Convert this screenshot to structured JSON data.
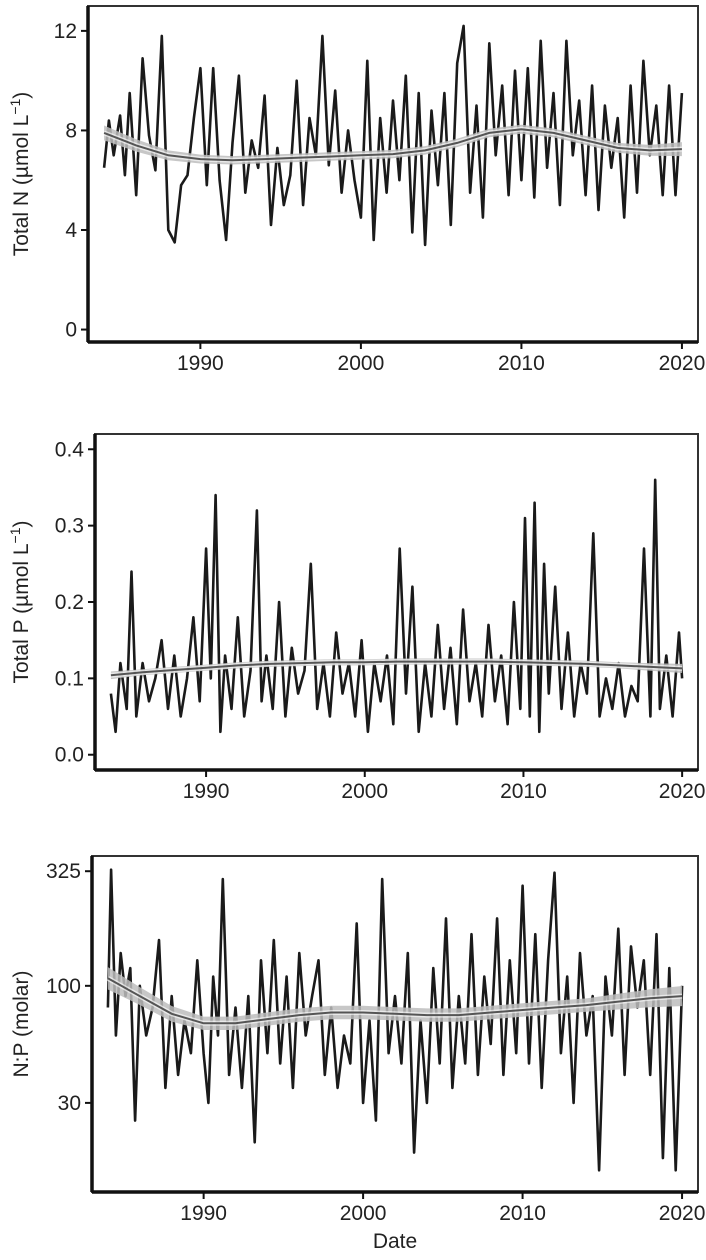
{
  "chart_data": [
    {
      "type": "line",
      "ylabel": "Total N  (µmol L",
      "ylabel_sup": "−1",
      "ylabel_close": ")",
      "xlabel": "",
      "xlim": [
        1983,
        2021
      ],
      "ylim": [
        -0.5,
        13
      ],
      "y_ticks": [
        0,
        4,
        8,
        12
      ],
      "y_tick_labels": [
        "0",
        "4",
        "8",
        "12"
      ],
      "x_ticks": [
        1990,
        2000,
        2010,
        2020
      ],
      "x_tick_labels": [
        "1990",
        "2000",
        "2010",
        "2020"
      ],
      "grid": false,
      "series": [
        {
          "kind": "raw",
          "color": "#1a1a1a",
          "x": [
            1984.0,
            1984.3,
            1984.6,
            1985.0,
            1985.3,
            1985.6,
            1986.0,
            1986.4,
            1986.8,
            1987.2,
            1987.6,
            1988.0,
            1988.4,
            1988.8,
            1989.2,
            1989.6,
            1990.0,
            1990.4,
            1990.8,
            1991.2,
            1991.6,
            1992.0,
            1992.4,
            1992.8,
            1993.2,
            1993.6,
            1994.0,
            1994.4,
            1994.8,
            1995.2,
            1995.6,
            1996.0,
            1996.4,
            1996.8,
            1997.2,
            1997.6,
            1998.0,
            1998.4,
            1998.8,
            1999.2,
            1999.6,
            2000.0,
            2000.4,
            2000.8,
            2001.2,
            2001.6,
            2002.0,
            2002.4,
            2002.8,
            2003.2,
            2003.6,
            2004.0,
            2004.4,
            2004.8,
            2005.2,
            2005.6,
            2006.0,
            2006.4,
            2006.8,
            2007.2,
            2007.6,
            2008.0,
            2008.4,
            2008.8,
            2009.2,
            2009.6,
            2010.0,
            2010.4,
            2010.8,
            2011.2,
            2011.6,
            2012.0,
            2012.4,
            2012.8,
            2013.2,
            2013.6,
            2014.0,
            2014.4,
            2014.8,
            2015.2,
            2015.6,
            2016.0,
            2016.4,
            2016.8,
            2017.2,
            2017.6,
            2018.0,
            2018.4,
            2018.8,
            2019.2,
            2019.6,
            2020.0
          ],
          "y": [
            6.5,
            8.4,
            7.0,
            8.6,
            6.2,
            9.5,
            5.4,
            10.9,
            7.8,
            6.4,
            11.8,
            4.0,
            3.5,
            5.8,
            6.2,
            8.5,
            10.5,
            5.8,
            10.5,
            6.0,
            3.6,
            7.5,
            10.2,
            5.5,
            7.6,
            6.5,
            9.4,
            4.2,
            7.3,
            5.0,
            6.2,
            10.0,
            5.0,
            8.5,
            7.0,
            11.8,
            6.6,
            9.6,
            5.5,
            8.0,
            6.0,
            4.5,
            10.8,
            3.6,
            8.5,
            5.5,
            9.2,
            6.0,
            10.2,
            3.9,
            9.5,
            3.4,
            8.8,
            5.8,
            9.5,
            4.2,
            10.7,
            12.2,
            5.5,
            9.0,
            4.5,
            11.5,
            7.0,
            9.8,
            5.4,
            10.4,
            6.0,
            10.5,
            5.3,
            11.6,
            6.5,
            9.5,
            5.0,
            11.6,
            7.0,
            9.2,
            5.4,
            9.8,
            4.8,
            9.0,
            6.5,
            8.5,
            4.5,
            9.8,
            5.5,
            10.8,
            7.0,
            9.0,
            5.4,
            9.8,
            5.4,
            9.5
          ]
        },
        {
          "kind": "smooth",
          "color": "#555555",
          "band_color": "#bdbdbd",
          "x": [
            1984,
            1986,
            1988,
            1990,
            1992,
            1994,
            1996,
            1998,
            2000,
            2002,
            2004,
            2006,
            2008,
            2010,
            2012,
            2014,
            2016,
            2018,
            2020
          ],
          "y": [
            7.9,
            7.4,
            7.0,
            6.85,
            6.8,
            6.85,
            6.9,
            6.95,
            7.0,
            7.05,
            7.2,
            7.5,
            7.9,
            8.05,
            7.9,
            7.6,
            7.3,
            7.2,
            7.25
          ],
          "band": [
            0.3,
            0.25,
            0.2,
            0.18,
            0.17,
            0.17,
            0.17,
            0.17,
            0.17,
            0.17,
            0.17,
            0.17,
            0.17,
            0.18,
            0.18,
            0.18,
            0.2,
            0.22,
            0.28
          ]
        }
      ]
    },
    {
      "type": "line",
      "ylabel": "Total P  (µmol L",
      "ylabel_sup": "−1",
      "ylabel_close": ")",
      "xlabel": "",
      "xlim": [
        1983,
        2021
      ],
      "ylim": [
        -0.02,
        0.42
      ],
      "y_ticks": [
        0.0,
        0.1,
        0.2,
        0.3,
        0.4
      ],
      "y_tick_labels": [
        "0.0",
        "0.1",
        "0.2",
        "0.3",
        "0.4"
      ],
      "x_ticks": [
        1990,
        2000,
        2010,
        2020
      ],
      "x_tick_labels": [
        "1990",
        "2000",
        "2010",
        "2020"
      ],
      "grid": false,
      "series": [
        {
          "kind": "raw",
          "color": "#1a1a1a",
          "x": [
            1984.0,
            1984.3,
            1984.6,
            1985.0,
            1985.3,
            1985.6,
            1986.0,
            1986.4,
            1986.8,
            1987.2,
            1987.6,
            1988.0,
            1988.4,
            1988.8,
            1989.2,
            1989.6,
            1990.0,
            1990.3,
            1990.6,
            1990.9,
            1991.2,
            1991.6,
            1992.0,
            1992.4,
            1992.8,
            1993.2,
            1993.5,
            1993.8,
            1994.2,
            1994.6,
            1995.0,
            1995.4,
            1995.8,
            1996.2,
            1996.6,
            1997.0,
            1997.4,
            1997.8,
            1998.2,
            1998.6,
            1999.0,
            1999.4,
            1999.8,
            2000.2,
            2000.6,
            2001.0,
            2001.4,
            2001.8,
            2002.2,
            2002.6,
            2003.0,
            2003.4,
            2003.8,
            2004.2,
            2004.6,
            2005.0,
            2005.4,
            2005.8,
            2006.2,
            2006.6,
            2007.0,
            2007.4,
            2007.8,
            2008.2,
            2008.6,
            2009.0,
            2009.4,
            2009.8,
            2010.1,
            2010.4,
            2010.7,
            2011.0,
            2011.3,
            2011.6,
            2012.0,
            2012.4,
            2012.8,
            2013.2,
            2013.6,
            2014.0,
            2014.4,
            2014.8,
            2015.2,
            2015.6,
            2016.0,
            2016.4,
            2016.8,
            2017.2,
            2017.6,
            2018.0,
            2018.3,
            2018.6,
            2019.0,
            2019.4,
            2019.8,
            2020.0
          ],
          "y": [
            0.08,
            0.03,
            0.12,
            0.06,
            0.24,
            0.05,
            0.12,
            0.07,
            0.1,
            0.15,
            0.06,
            0.13,
            0.05,
            0.1,
            0.18,
            0.07,
            0.27,
            0.1,
            0.34,
            0.03,
            0.13,
            0.06,
            0.18,
            0.05,
            0.11,
            0.32,
            0.07,
            0.13,
            0.06,
            0.2,
            0.05,
            0.14,
            0.08,
            0.11,
            0.25,
            0.06,
            0.12,
            0.05,
            0.16,
            0.08,
            0.12,
            0.05,
            0.15,
            0.03,
            0.12,
            0.07,
            0.13,
            0.04,
            0.27,
            0.08,
            0.22,
            0.03,
            0.12,
            0.05,
            0.17,
            0.06,
            0.14,
            0.04,
            0.19,
            0.07,
            0.12,
            0.05,
            0.17,
            0.07,
            0.13,
            0.04,
            0.2,
            0.06,
            0.31,
            0.05,
            0.33,
            0.03,
            0.25,
            0.08,
            0.22,
            0.06,
            0.16,
            0.05,
            0.12,
            0.08,
            0.29,
            0.05,
            0.1,
            0.06,
            0.12,
            0.05,
            0.09,
            0.07,
            0.27,
            0.05,
            0.36,
            0.06,
            0.13,
            0.05,
            0.16,
            0.1
          ]
        },
        {
          "kind": "smooth",
          "color": "#555555",
          "band_color": "#bdbdbd",
          "x": [
            1984,
            1986,
            1988,
            1990,
            1992,
            1994,
            1996,
            1998,
            2000,
            2002,
            2004,
            2006,
            2008,
            2010,
            2012,
            2014,
            2016,
            2018,
            2020
          ],
          "y": [
            0.104,
            0.108,
            0.111,
            0.114,
            0.117,
            0.119,
            0.12,
            0.121,
            0.121,
            0.122,
            0.122,
            0.122,
            0.122,
            0.121,
            0.12,
            0.119,
            0.117,
            0.115,
            0.113
          ],
          "band": [
            0.005,
            0.004,
            0.004,
            0.004,
            0.004,
            0.004,
            0.004,
            0.004,
            0.004,
            0.004,
            0.004,
            0.004,
            0.004,
            0.004,
            0.004,
            0.004,
            0.004,
            0.005,
            0.006
          ]
        }
      ]
    },
    {
      "type": "line",
      "ylabel": "N:P (molar)",
      "ylabel_sup": "",
      "ylabel_close": "",
      "xlabel": "Date",
      "xlim": [
        1983,
        2021
      ],
      "yscale": "log",
      "ylim": [
        12,
        380
      ],
      "y_ticks": [
        30,
        100,
        325
      ],
      "y_tick_labels": [
        "30",
        "100",
        "325"
      ],
      "x_ticks": [
        1990,
        2000,
        2010,
        2020
      ],
      "x_tick_labels": [
        "1990",
        "2000",
        "2010",
        "2020"
      ],
      "grid": false,
      "series": [
        {
          "kind": "raw",
          "color": "#1a1a1a",
          "x": [
            1984.0,
            1984.2,
            1984.5,
            1984.8,
            1985.1,
            1985.4,
            1985.7,
            1986.0,
            1986.4,
            1986.8,
            1987.2,
            1987.6,
            1988.0,
            1988.4,
            1988.8,
            1989.2,
            1989.6,
            1990.0,
            1990.3,
            1990.6,
            1990.9,
            1991.2,
            1991.6,
            1992.0,
            1992.4,
            1992.8,
            1993.2,
            1993.6,
            1994.0,
            1994.4,
            1994.8,
            1995.2,
            1995.6,
            1996.0,
            1996.4,
            1996.8,
            1997.2,
            1997.6,
            1998.0,
            1998.4,
            1998.8,
            1999.2,
            1999.6,
            2000.0,
            2000.4,
            2000.8,
            2001.2,
            2001.6,
            2002.0,
            2002.4,
            2002.8,
            2003.2,
            2003.6,
            2004.0,
            2004.4,
            2004.8,
            2005.2,
            2005.6,
            2006.0,
            2006.4,
            2006.8,
            2007.2,
            2007.6,
            2008.0,
            2008.4,
            2008.8,
            2009.2,
            2009.6,
            2010.0,
            2010.4,
            2010.8,
            2011.2,
            2011.6,
            2012.0,
            2012.4,
            2012.8,
            2013.2,
            2013.6,
            2014.0,
            2014.4,
            2014.8,
            2015.2,
            2015.6,
            2016.0,
            2016.4,
            2016.8,
            2017.2,
            2017.6,
            2018.0,
            2018.4,
            2018.8,
            2019.2,
            2019.6,
            2020.0
          ],
          "y": [
            80,
            330,
            60,
            140,
            90,
            120,
            25,
            100,
            60,
            80,
            160,
            35,
            90,
            40,
            70,
            50,
            130,
            50,
            30,
            110,
            60,
            300,
            40,
            80,
            35,
            90,
            20,
            130,
            50,
            160,
            45,
            110,
            35,
            140,
            60,
            90,
            130,
            40,
            80,
            35,
            60,
            45,
            190,
            30,
            70,
            25,
            300,
            50,
            90,
            45,
            140,
            18,
            70,
            30,
            120,
            45,
            200,
            35,
            90,
            45,
            170,
            40,
            110,
            55,
            200,
            40,
            130,
            50,
            280,
            45,
            170,
            35,
            130,
            320,
            50,
            110,
            30,
            140,
            60,
            90,
            15,
            110,
            60,
            180,
            40,
            150,
            80,
            130,
            40,
            170,
            17,
            120,
            15,
            100
          ]
        },
        {
          "kind": "smooth",
          "color": "#555555",
          "band_color": "#bdbdbd",
          "x": [
            1984,
            1986,
            1988,
            1990,
            1992,
            1994,
            1996,
            1998,
            2000,
            2002,
            2004,
            2006,
            2008,
            2010,
            2012,
            2014,
            2016,
            2018,
            2020
          ],
          "y": [
            108,
            90,
            75,
            68,
            68,
            71,
            74,
            76,
            76,
            75,
            74,
            74,
            76,
            78,
            80,
            82,
            85,
            88,
            90
          ],
          "band": [
            0.05,
            0.04,
            0.035,
            0.03,
            0.03,
            0.03,
            0.03,
            0.03,
            0.03,
            0.03,
            0.03,
            0.03,
            0.03,
            0.03,
            0.03,
            0.03,
            0.035,
            0.04,
            0.045
          ]
        }
      ]
    }
  ]
}
